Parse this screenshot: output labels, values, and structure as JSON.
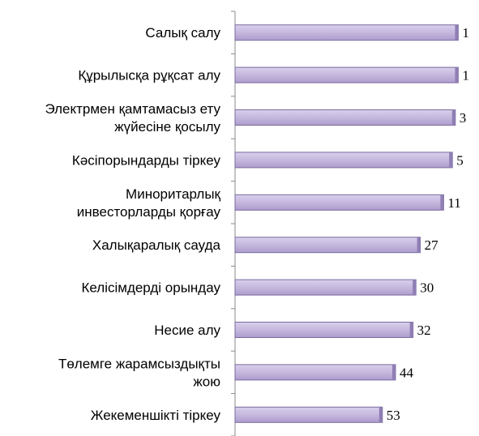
{
  "chart_data": {
    "type": "bar",
    "orientation": "horizontal",
    "categories": [
      "Салық салу",
      "Құрылысқа рұқсат алу",
      "Электрмен қамтамасыз ету жүйесіне қосылу",
      "Кәсіпорындарды тіркеу",
      "Миноритарлық инвесторларды қорғау",
      "Халықаралық сауда",
      "Келісімдерді орындау",
      "Несие алу",
      "Төлемге жарамсыздықты жою",
      "Жекеменшікті тіркеу"
    ],
    "category_lines": [
      [
        "Салық салу"
      ],
      [
        "Құрылысқа рұқсат алу"
      ],
      [
        "Электрмен қамтамасыз ету",
        "жүйесіне қосылу"
      ],
      [
        "Кәсіпорындарды тіркеу"
      ],
      [
        "Миноритарлық",
        "инвесторларды қорғау"
      ],
      [
        "Халықаралық сауда"
      ],
      [
        "Келісімдерді орындау"
      ],
      [
        "Несие алу"
      ],
      [
        "Төлемге жарамсыздықты",
        "жою"
      ],
      [
        "Жекеменшікті тіркеу"
      ]
    ],
    "values": [
      1,
      1,
      3,
      5,
      11,
      27,
      30,
      32,
      44,
      53
    ],
    "value_labels": [
      "1",
      "1",
      "3",
      "5",
      "11",
      "27",
      "30",
      "32",
      "44",
      "53"
    ],
    "axis": "reversed",
    "xlim": [
      0,
      154
    ],
    "title": "",
    "xlabel": "",
    "ylabel": "",
    "grid": false,
    "legend": "none",
    "bar_color": "#c5b8de",
    "bar_border_color": "#7a6a9e"
  }
}
